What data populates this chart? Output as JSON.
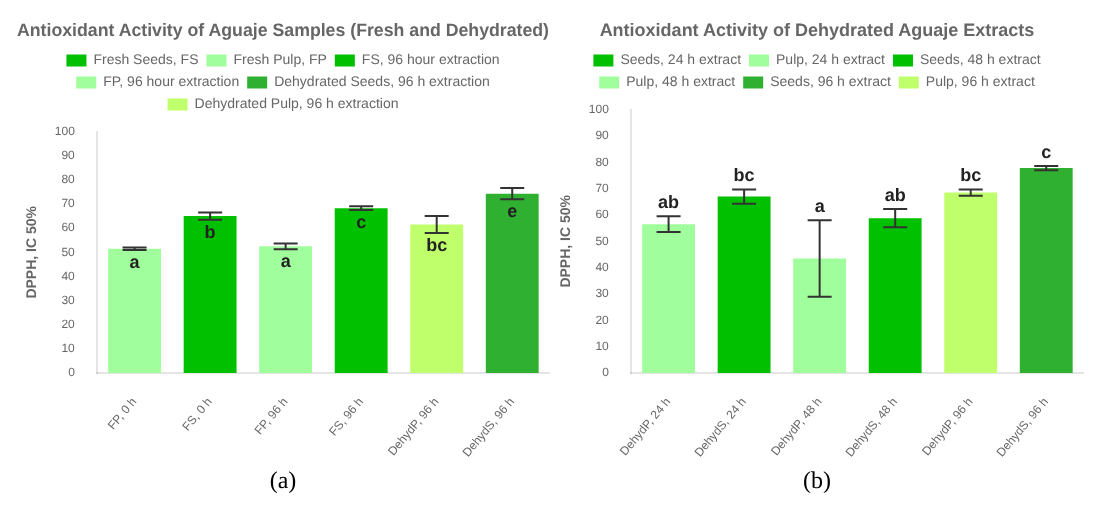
{
  "chart_data": [
    {
      "type": "bar",
      "title": "Antioxidant Activity of Aguaje Samples (Fresh and Dehydrated)",
      "ylabel": "DPPH, IC 50%",
      "categories": [
        "FP, 0 h",
        "FS, 0 h",
        "FP, 96 h",
        "FS, 96 h",
        "DehydP, 96 h",
        "DehydS, 96 h"
      ],
      "series": [
        {
          "name": "Fresh Seeds, FS",
          "color": "#00c000",
          "values": [
            null,
            65,
            null,
            null,
            null,
            null
          ],
          "errors": [
            null,
            1.5,
            null,
            null,
            null,
            null
          ]
        },
        {
          "name": "Fresh Pulp, FP",
          "color": "#a0ff9c",
          "values": [
            51.5,
            null,
            null,
            null,
            null,
            null
          ],
          "errors": [
            0.5,
            null,
            null,
            null,
            null,
            null
          ]
        },
        {
          "name": "FS, 96 hour extraction",
          "color": "#00c000",
          "values": [
            null,
            null,
            null,
            68.3,
            null,
            null
          ],
          "errors": [
            null,
            null,
            null,
            0.8,
            null,
            null
          ]
        },
        {
          "name": "FP, 96 hour extraction",
          "color": "#a0ff9c",
          "values": [
            null,
            null,
            52.5,
            null,
            null,
            null
          ],
          "errors": [
            null,
            null,
            1.2,
            null,
            null,
            null
          ]
        },
        {
          "name": "Dehydrated Seeds, 96 h extraction",
          "color": "#30b030",
          "values": [
            null,
            null,
            null,
            null,
            null,
            74.3
          ],
          "errors": [
            null,
            null,
            null,
            null,
            null,
            2.3
          ]
        },
        {
          "name": "Dehydrated Pulp, 96 h extraction",
          "color": "#c0ff6c",
          "values": [
            null,
            null,
            null,
            null,
            61.5,
            null
          ],
          "errors": [
            null,
            null,
            null,
            null,
            3.5,
            null
          ]
        }
      ],
      "ylim": [
        0,
        100
      ],
      "yticks": [
        0,
        10,
        20,
        30,
        40,
        50,
        60,
        70,
        80,
        90,
        100
      ],
      "grid": false,
      "legend": "top",
      "annotations": [
        {
          "text": "a",
          "x": "FP, 0 h",
          "y": 51.5
        },
        {
          "text": "b",
          "x": "FS, 0 h",
          "y": 65
        },
        {
          "text": "a",
          "x": "FP, 96 h",
          "y": 52.5
        },
        {
          "text": "c",
          "x": "FS, 96 h",
          "y": 68.3
        },
        {
          "text": "bc",
          "x": "DehydP, 96 h",
          "y": 61.5
        },
        {
          "text": "e",
          "x": "DehydS, 96 h",
          "y": 74.3
        },
        "(a)"
      ]
    },
    {
      "type": "bar",
      "title": "Antioxidant Activity of Dehydrated Aguaje Extracts",
      "ylabel": "DPPH, IC 50%",
      "categories": [
        "DehydP, 24 h",
        "DehydS, 24 h",
        "DehydP, 48 h",
        "DehydS, 48 h",
        "DehydP, 96 h",
        "DehydS, 96 h"
      ],
      "series": [
        {
          "name": "Seeds, 24 h extract",
          "color": "#00c000",
          "values": [
            null,
            67,
            null,
            null,
            null,
            null
          ],
          "errors": [
            null,
            2.7,
            null,
            null,
            null,
            null
          ]
        },
        {
          "name": "Pulp, 24 h extract",
          "color": "#a0ff9c",
          "values": [
            56.5,
            null,
            null,
            null,
            null,
            null
          ],
          "errors": [
            3,
            null,
            null,
            null,
            null,
            null
          ]
        },
        {
          "name": "Seeds, 48 h extract",
          "color": "#00c000",
          "values": [
            null,
            null,
            null,
            58.8,
            null,
            null
          ],
          "errors": [
            null,
            null,
            null,
            3.5,
            null,
            null
          ]
        },
        {
          "name": "Pulp, 48 h extract",
          "color": "#a0ff9c",
          "values": [
            null,
            null,
            43.5,
            null,
            null,
            null
          ],
          "errors": [
            null,
            null,
            14.5,
            null,
            null,
            null
          ]
        },
        {
          "name": "Seeds, 96 h extract",
          "color": "#30b030",
          "values": [
            null,
            null,
            null,
            null,
            null,
            77.8
          ],
          "errors": [
            null,
            null,
            null,
            null,
            null,
            0.8
          ]
        },
        {
          "name": "Pulp, 96 h extract",
          "color": "#c0ff6c",
          "values": [
            null,
            null,
            null,
            null,
            68.5,
            null
          ],
          "errors": [
            null,
            null,
            null,
            null,
            1.2,
            null
          ]
        }
      ],
      "ylim": [
        0,
        100
      ],
      "yticks": [
        0,
        10,
        20,
        30,
        40,
        50,
        60,
        70,
        80,
        90,
        100
      ],
      "grid": false,
      "legend": "top",
      "annotations": [
        {
          "text": "ab",
          "x": "DehydP, 24 h",
          "y": 59.5
        },
        {
          "text": "bc",
          "x": "DehydS, 24 h",
          "y": 69.7
        },
        {
          "text": "a",
          "x": "DehydP, 48 h",
          "y": 58
        },
        {
          "text": "ab",
          "x": "DehydS, 48 h",
          "y": 62.3
        },
        {
          "text": "bc",
          "x": "DehydP, 96 h",
          "y": 69.7
        },
        {
          "text": "c",
          "x": "DehydS, 96 h",
          "y": 78.6
        },
        "(b)"
      ]
    }
  ]
}
